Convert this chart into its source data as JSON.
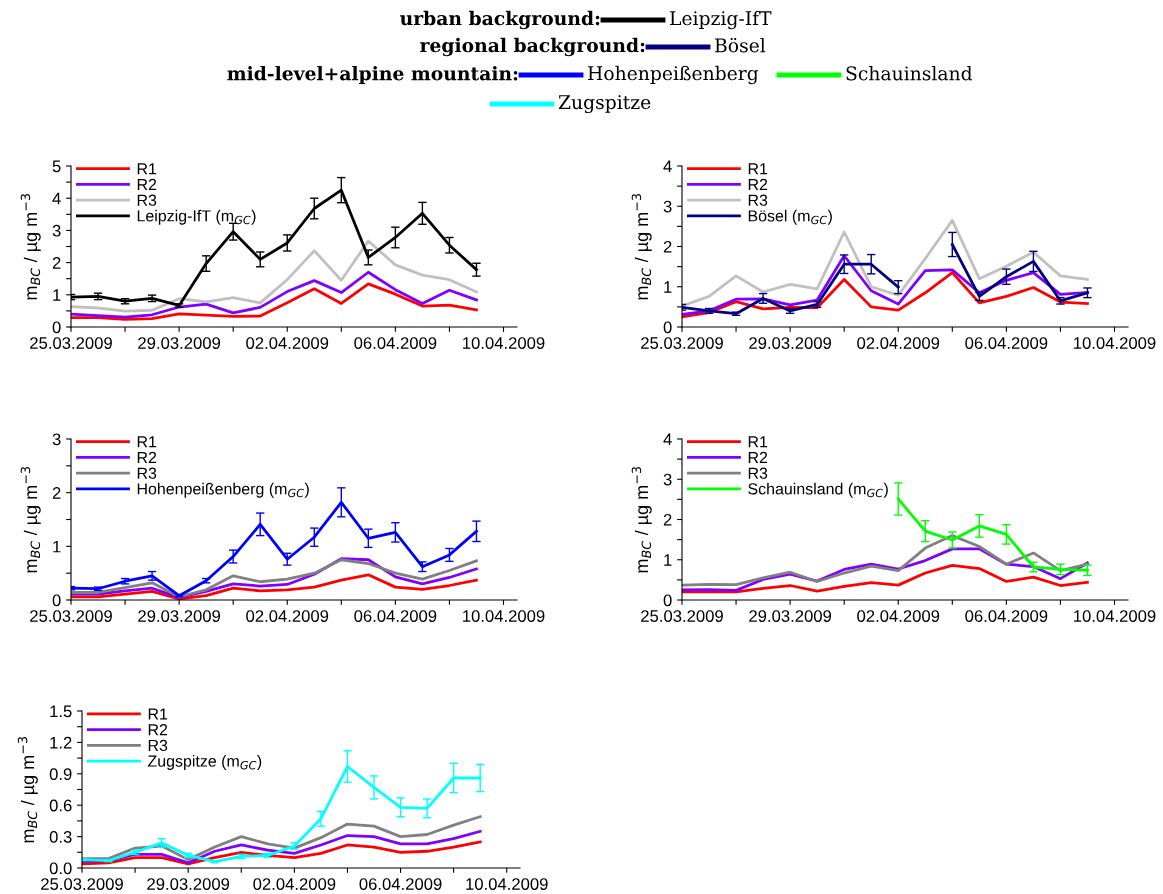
{
  "chart_data": [
    {
      "type": "other",
      "annotations": [
        "urban background:",
        "regional background:",
        "mid-level+alpine mountain:"
      ],
      "categories": [
        "Leipzig-IfT",
        "Bösel",
        "Hohenpeißenberg",
        "Schauinsland",
        "Zugspitze"
      ],
      "colors": [
        "#000000",
        "#000080",
        "#0000ff",
        "#00ff00",
        "#00ffff"
      ]
    },
    {
      "type": "line",
      "ylabel": "m$_{BC}$ / µg m$^{−3}$",
      "legend": "top left",
      "x": [
        "2009-03-25",
        "2009-03-26",
        "2009-03-27",
        "2009-03-28",
        "2009-03-29",
        "2009-03-30",
        "2009-03-31",
        "2009-04-01",
        "2009-04-02",
        "2009-04-03",
        "2009-04-04",
        "2009-04-05",
        "2009-04-06",
        "2009-04-07",
        "2009-04-08",
        "2009-04-09"
      ],
      "xlim": [
        "2009-03-25",
        "2009-04-10T12:00"
      ],
      "xticks": [
        {
          "value": "2009-03-25",
          "label": "25.03.2009"
        },
        {
          "value": "2009-03-27",
          "label": null
        },
        {
          "value": "2009-03-29",
          "label": "29.03.2009"
        },
        {
          "value": "2009-03-31",
          "label": null
        },
        {
          "value": "2009-04-02",
          "label": "02.04.2009"
        },
        {
          "value": "2009-04-04",
          "label": null
        },
        {
          "value": "2009-04-06",
          "label": "06.04.2009"
        },
        {
          "value": "2009-04-08",
          "label": null
        },
        {
          "value": "2009-04-10",
          "label": "10.04.2009"
        }
      ],
      "ylim": [
        0,
        5
      ],
      "yticks": [
        0,
        {
          "value": 0.5,
          "label": null
        },
        1,
        {
          "value": 1.5,
          "label": null
        },
        2,
        {
          "value": 2.5,
          "label": null
        },
        3,
        {
          "value": 3.5,
          "label": null
        },
        4,
        {
          "value": 4.5,
          "label": null
        },
        5
      ],
      "series": [
        {
          "name": "R1",
          "color": "#ff0000",
          "values": [
            0.29,
            0.29,
            0.24,
            0.26,
            0.41,
            0.37,
            0.33,
            0.34,
            0.75,
            1.19,
            0.73,
            1.34,
            1.02,
            0.65,
            0.68,
            0.53
          ]
        },
        {
          "name": "R2",
          "color": "#8000ff",
          "values": [
            0.4,
            0.35,
            0.31,
            0.38,
            0.62,
            0.71,
            0.44,
            0.61,
            1.1,
            1.44,
            1.07,
            1.7,
            1.16,
            0.73,
            1.14,
            0.84
          ]
        },
        {
          "name": "R3",
          "color": "#c0c0c0",
          "values": [
            0.63,
            0.59,
            0.49,
            0.52,
            0.88,
            0.78,
            0.91,
            0.75,
            1.47,
            2.37,
            1.45,
            2.67,
            1.93,
            1.61,
            1.47,
            1.09
          ]
        },
        {
          "name": "Leipzig-IfT (m$_{GC}$)",
          "color": "#000000",
          "values": [
            0.93,
            0.95,
            0.8,
            0.89,
            0.67,
            1.97,
            2.96,
            2.1,
            2.61,
            3.68,
            4.25,
            2.16,
            2.78,
            3.53,
            2.54,
            1.78
          ],
          "errors": [
            0.08,
            0.1,
            0.08,
            0.1,
            0.05,
            0.24,
            0.26,
            0.23,
            0.25,
            0.32,
            0.39,
            0.23,
            0.32,
            0.34,
            0.24,
            0.2
          ]
        }
      ]
    },
    {
      "type": "line",
      "ylabel": "m$_{BC}$ / µg m$^{−3}$",
      "legend": "top left",
      "x": [
        "2009-03-25",
        "2009-03-26",
        "2009-03-27",
        "2009-03-28",
        "2009-03-29",
        "2009-03-30",
        "2009-03-31",
        "2009-04-01",
        "2009-04-02",
        "2009-04-03",
        "2009-04-04",
        "2009-04-05",
        "2009-04-06",
        "2009-04-07",
        "2009-04-08",
        "2009-04-09"
      ],
      "xlim": [
        "2009-03-25",
        "2009-04-10T12:00"
      ],
      "xticks": [
        {
          "value": "2009-03-25",
          "label": "25.03.2009"
        },
        {
          "value": "2009-03-27",
          "label": null
        },
        {
          "value": "2009-03-29",
          "label": "29.03.2009"
        },
        {
          "value": "2009-03-31",
          "label": null
        },
        {
          "value": "2009-04-02",
          "label": "02.04.2009"
        },
        {
          "value": "2009-04-04",
          "label": null
        },
        {
          "value": "2009-04-06",
          "label": "06.04.2009"
        },
        {
          "value": "2009-04-08",
          "label": null
        },
        {
          "value": "2009-04-10",
          "label": "10.04.2009"
        }
      ],
      "ylim": [
        0,
        4
      ],
      "yticks": [
        0,
        {
          "value": 0.5,
          "label": null
        },
        1,
        {
          "value": 1.5,
          "label": null
        },
        2,
        {
          "value": 2.5,
          "label": null
        },
        3,
        {
          "value": 3.5,
          "label": null
        },
        4
      ],
      "series": [
        {
          "name": "R1",
          "color": "#ff0000",
          "values": [
            0.25,
            0.36,
            0.63,
            0.45,
            0.49,
            0.48,
            1.18,
            0.5,
            0.42,
            0.85,
            1.35,
            0.6,
            0.76,
            0.98,
            0.62,
            0.58
          ]
        },
        {
          "name": "R2",
          "color": "#8000ff",
          "values": [
            0.31,
            0.4,
            0.69,
            0.7,
            0.55,
            0.67,
            1.77,
            0.9,
            0.57,
            1.4,
            1.42,
            0.85,
            1.16,
            1.35,
            0.81,
            0.86
          ]
        },
        {
          "name": "R3",
          "color": "#c0c0c0",
          "values": [
            0.52,
            0.76,
            1.27,
            0.87,
            1.06,
            0.95,
            2.36,
            1.0,
            0.79,
            1.7,
            2.65,
            1.2,
            1.51,
            1.86,
            1.27,
            1.18
          ]
        },
        {
          "name": "Bösel (m$_{GC}$)",
          "color": "#000080",
          "values": [
            0.49,
            0.4,
            0.33,
            0.71,
            0.4,
            0.56,
            1.56,
            1.56,
            0.99,
            null,
            2.05,
            0.76,
            1.25,
            1.63,
            0.65,
            0.85
          ],
          "errors": [
            0.07,
            0.06,
            0.04,
            0.12,
            0.06,
            0.07,
            0.23,
            0.24,
            0.16,
            null,
            0.3,
            0.1,
            0.19,
            0.25,
            0.08,
            0.12
          ]
        }
      ]
    },
    {
      "type": "line",
      "ylabel": "m$_{BC}$ / µg m$^{−3}$",
      "legend": "top left",
      "x": [
        "2009-03-25",
        "2009-03-26",
        "2009-03-27",
        "2009-03-28",
        "2009-03-29",
        "2009-03-30",
        "2009-03-31",
        "2009-04-01",
        "2009-04-02",
        "2009-04-03",
        "2009-04-04",
        "2009-04-05",
        "2009-04-06",
        "2009-04-07",
        "2009-04-08",
        "2009-04-09"
      ],
      "xlim": [
        "2009-03-25",
        "2009-04-10T12:00"
      ],
      "xticks": [
        {
          "value": "2009-03-25",
          "label": "25.03.2009"
        },
        {
          "value": "2009-03-27",
          "label": null
        },
        {
          "value": "2009-03-29",
          "label": "29.03.2009"
        },
        {
          "value": "2009-03-31",
          "label": null
        },
        {
          "value": "2009-04-02",
          "label": "02.04.2009"
        },
        {
          "value": "2009-04-04",
          "label": null
        },
        {
          "value": "2009-04-06",
          "label": "06.04.2009"
        },
        {
          "value": "2009-04-08",
          "label": null
        },
        {
          "value": "2009-04-10",
          "label": "10.04.2009"
        }
      ],
      "ylim": [
        0,
        3
      ],
      "yticks": [
        0,
        {
          "value": 0.5,
          "label": null
        },
        1,
        {
          "value": 1.5,
          "label": null
        },
        2,
        {
          "value": 2.5,
          "label": null
        },
        3
      ],
      "series": [
        {
          "name": "R1",
          "color": "#ff0000",
          "values": [
            0.06,
            0.06,
            0.11,
            0.16,
            0.02,
            0.08,
            0.22,
            0.17,
            0.19,
            0.24,
            0.37,
            0.47,
            0.24,
            0.2,
            0.27,
            0.37
          ]
        },
        {
          "name": "R2",
          "color": "#8000ff",
          "values": [
            0.11,
            0.11,
            0.17,
            0.22,
            0.05,
            0.16,
            0.3,
            0.26,
            0.29,
            0.48,
            0.77,
            0.75,
            0.43,
            0.3,
            0.42,
            0.58
          ]
        },
        {
          "name": "R3",
          "color": "#808080",
          "values": [
            0.14,
            0.14,
            0.23,
            0.32,
            0.06,
            0.19,
            0.45,
            0.34,
            0.39,
            0.5,
            0.75,
            0.68,
            0.5,
            0.39,
            0.55,
            0.73
          ]
        },
        {
          "name": "Hohenpeißenberg (m$_{GC}$)",
          "color": "#0000ff",
          "values": [
            0.22,
            0.21,
            0.35,
            0.45,
            0.08,
            0.36,
            0.81,
            1.41,
            0.76,
            1.17,
            1.82,
            1.15,
            1.26,
            0.62,
            0.84,
            1.28
          ],
          "errors": [
            0.03,
            0.03,
            0.05,
            0.08,
            0.02,
            0.04,
            0.12,
            0.21,
            0.11,
            0.17,
            0.27,
            0.17,
            0.18,
            0.09,
            0.12,
            0.19
          ]
        }
      ]
    },
    {
      "type": "line",
      "ylabel": "m$_{BC}$ / µg m$^{−3}$",
      "legend": "top left",
      "x": [
        "2009-03-25",
        "2009-03-26",
        "2009-03-27",
        "2009-03-28",
        "2009-03-29",
        "2009-03-30",
        "2009-03-31",
        "2009-04-01",
        "2009-04-02",
        "2009-04-03",
        "2009-04-04",
        "2009-04-05",
        "2009-04-06",
        "2009-04-07",
        "2009-04-08",
        "2009-04-09"
      ],
      "xlim": [
        "2009-03-25",
        "2009-04-10T12:00"
      ],
      "xticks": [
        {
          "value": "2009-03-25",
          "label": "25.03.2009"
        },
        {
          "value": "2009-03-27",
          "label": null
        },
        {
          "value": "2009-03-29",
          "label": "29.03.2009"
        },
        {
          "value": "2009-03-31",
          "label": null
        },
        {
          "value": "2009-04-02",
          "label": "02.04.2009"
        },
        {
          "value": "2009-04-04",
          "label": null
        },
        {
          "value": "2009-04-06",
          "label": "06.04.2009"
        },
        {
          "value": "2009-04-08",
          "label": null
        },
        {
          "value": "2009-04-10",
          "label": "10.04.2009"
        }
      ],
      "ylim": [
        0,
        4
      ],
      "yticks": [
        0,
        {
          "value": 0.5,
          "label": null
        },
        1,
        {
          "value": 1.5,
          "label": null
        },
        2,
        {
          "value": 2.5,
          "label": null
        },
        3,
        {
          "value": 3.5,
          "label": null
        },
        4
      ],
      "series": [
        {
          "name": "R1",
          "color": "#ff0000",
          "values": [
            0.2,
            0.21,
            0.2,
            0.29,
            0.36,
            0.22,
            0.34,
            0.43,
            0.37,
            0.67,
            0.86,
            0.78,
            0.46,
            0.57,
            0.36,
            0.44
          ]
        },
        {
          "name": "R2",
          "color": "#8000ff",
          "values": [
            0.25,
            0.26,
            0.24,
            0.51,
            0.64,
            0.47,
            0.76,
            0.89,
            0.77,
            0.98,
            1.27,
            1.27,
            0.89,
            0.83,
            0.53,
            0.92
          ]
        },
        {
          "name": "R3",
          "color": "#808080",
          "values": [
            0.37,
            0.39,
            0.38,
            0.55,
            0.69,
            0.46,
            0.67,
            0.84,
            0.73,
            1.29,
            1.6,
            1.33,
            0.89,
            1.17,
            0.73,
            0.89
          ]
        },
        {
          "name": "Schauinsland (m$_{GC}$)",
          "color": "#00ff00",
          "values": [
            null,
            null,
            null,
            null,
            null,
            null,
            null,
            null,
            2.51,
            1.71,
            1.49,
            1.84,
            1.63,
            0.82,
            0.76,
            0.74
          ],
          "errors": [
            null,
            null,
            null,
            null,
            null,
            null,
            null,
            null,
            0.4,
            0.26,
            0.2,
            0.28,
            0.24,
            0.12,
            0.13,
            0.13
          ]
        }
      ]
    },
    {
      "type": "line",
      "ylabel": "m$_{BC}$ / µg m$^{−3}$",
      "legend": "top left",
      "x": [
        "2009-03-25",
        "2009-03-26",
        "2009-03-27",
        "2009-03-28",
        "2009-03-29",
        "2009-03-30",
        "2009-03-31",
        "2009-04-01",
        "2009-04-02",
        "2009-04-03",
        "2009-04-04",
        "2009-04-05",
        "2009-04-06",
        "2009-04-07",
        "2009-04-08",
        "2009-04-09"
      ],
      "xlim": [
        "2009-03-25",
        "2009-04-10T12:00"
      ],
      "xticks": [
        {
          "value": "2009-03-25",
          "label": "25.03.2009"
        },
        {
          "value": "2009-03-27",
          "label": null
        },
        {
          "value": "2009-03-29",
          "label": "29.03.2009"
        },
        {
          "value": "2009-03-31",
          "label": null
        },
        {
          "value": "2009-04-02",
          "label": "02.04.2009"
        },
        {
          "value": "2009-04-04",
          "label": null
        },
        {
          "value": "2009-04-06",
          "label": "06.04.2009"
        },
        {
          "value": "2009-04-08",
          "label": null
        },
        {
          "value": "2009-04-10",
          "label": "10.04.2009"
        }
      ],
      "ylim": [
        0,
        1.5
      ],
      "yticks": [
        {
          "value": 0,
          "label": "0.0"
        },
        {
          "value": 0.15,
          "label": null
        },
        0.3,
        {
          "value": 0.45,
          "label": null
        },
        0.6,
        {
          "value": 0.75,
          "label": null
        },
        0.9,
        {
          "value": 1.05,
          "label": null
        },
        1.2,
        {
          "value": 1.35,
          "label": null
        },
        1.5
      ],
      "series": [
        {
          "name": "R1",
          "color": "#ff0000",
          "values": [
            0.04,
            0.05,
            0.1,
            0.1,
            0.04,
            0.1,
            0.15,
            0.12,
            0.1,
            0.14,
            0.22,
            0.2,
            0.15,
            0.16,
            0.2,
            0.25
          ]
        },
        {
          "name": "R2",
          "color": "#8000ff",
          "values": [
            0.06,
            0.07,
            0.13,
            0.13,
            0.05,
            0.16,
            0.22,
            0.17,
            0.14,
            0.22,
            0.31,
            0.3,
            0.23,
            0.23,
            0.28,
            0.35
          ]
        },
        {
          "name": "R3",
          "color": "#808080",
          "values": [
            0.09,
            0.09,
            0.19,
            0.21,
            0.08,
            0.2,
            0.3,
            0.23,
            0.19,
            0.29,
            0.42,
            0.4,
            0.3,
            0.32,
            0.41,
            0.49
          ]
        },
        {
          "name": "Zugspitze (m$_{GC}$)",
          "color": "#00ffff",
          "values": [
            0.08,
            0.07,
            0.15,
            0.24,
            0.12,
            0.06,
            0.11,
            0.12,
            0.21,
            0.47,
            0.97,
            0.77,
            0.58,
            0.57,
            0.86,
            0.86
          ],
          "errors": [
            0.01,
            0.01,
            0.02,
            0.04,
            0.02,
            0.01,
            0.02,
            0.02,
            0.03,
            0.07,
            0.15,
            0.11,
            0.09,
            0.09,
            0.14,
            0.13
          ]
        }
      ]
    }
  ]
}
